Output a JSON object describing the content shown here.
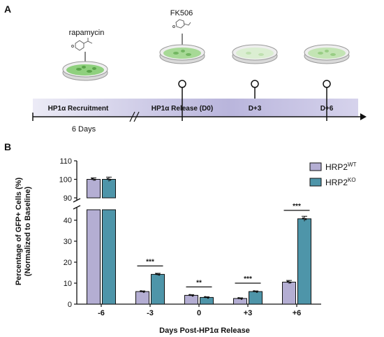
{
  "panels": {
    "a": "A",
    "b": "B"
  },
  "schematic": {
    "drug_1": "rapamycin",
    "drug_2": "FK506",
    "timeline_labels": [
      "HP1α Recruitment",
      "HP1α Release (D0)",
      "D+3",
      "D+6"
    ],
    "duration": "6 Days"
  },
  "colors": {
    "wt": "#b4aed3",
    "ko": "#4e95a9",
    "timeline": "#c9c6e6",
    "dish_green": "#7cc56b"
  },
  "chart_data": {
    "type": "bar",
    "xlabel": "Days Post-HP1α Release",
    "ylabel": [
      "Percentage of GFP+ Cells (%)",
      "(Normalized to Baseline)"
    ],
    "ylim": [
      0,
      110
    ],
    "axis_break": [
      45,
      90
    ],
    "categories": [
      "-6",
      "-3",
      "0",
      "+3",
      "+6"
    ],
    "upper_ticks": [
      90,
      100,
      110
    ],
    "lower_ticks": [
      0,
      10,
      20,
      30,
      40
    ],
    "series": [
      {
        "name": "HRP2",
        "superscript": "WT",
        "values": [
          100.0,
          6.0,
          4.2,
          2.7,
          10.5
        ],
        "err": [
          0.8,
          0.3,
          0.3,
          0.3,
          0.8
        ]
      },
      {
        "name": "HRP2",
        "superscript": "KO",
        "values": [
          100.0,
          14.2,
          3.2,
          6.0,
          40.7
        ],
        "err": [
          1.2,
          0.5,
          0.3,
          0.3,
          1.2
        ]
      }
    ],
    "significance": [
      null,
      "***",
      "**",
      "***",
      "***"
    ],
    "legend_position": "top-right"
  }
}
